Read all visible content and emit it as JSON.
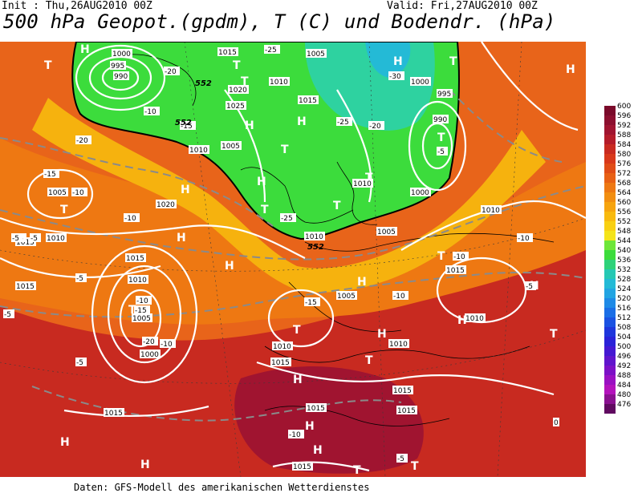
{
  "header": {
    "init": "Init : Thu,26AUG2010 00Z",
    "valid": "Valid: Fri,27AUG2010 00Z",
    "title": "500 hPa Geopot.(gpdm), T (C) und Bodendr. (hPa)"
  },
  "footer": "Daten: GFS-Modell des amerikanischen Wetterdienstes",
  "legend": {
    "levels": [
      "600",
      "596",
      "592",
      "588",
      "584",
      "580",
      "576",
      "572",
      "568",
      "564",
      "560",
      "556",
      "552",
      "548",
      "544",
      "540",
      "536",
      "532",
      "528",
      "524",
      "520",
      "516",
      "512",
      "508",
      "504",
      "500",
      "496",
      "492",
      "488",
      "484",
      "480",
      "476"
    ],
    "colors": [
      "#7a0a2a",
      "#8c0f2f",
      "#a01430",
      "#b41c2a",
      "#c82a20",
      "#d8381a",
      "#e04c16",
      "#e86014",
      "#ee7812",
      "#f28e10",
      "#f6a40e",
      "#f8ba0e",
      "#f8d012",
      "#f4e41a",
      "#6ee63a",
      "#3cdc3c",
      "#2ed27a",
      "#26c8b4",
      "#24bad6",
      "#22a4e2",
      "#1e8ae6",
      "#1a6ee6",
      "#1a52e2",
      "#1e36dc",
      "#2a22d8",
      "#4418d2",
      "#6014cc",
      "#7c10c6",
      "#9a10c2",
      "#b412bc",
      "#8a1090",
      "#600a60"
    ]
  },
  "map": {
    "high_markers": [
      {
        "label": "H"
      },
      {
        "label": "H"
      },
      {
        "label": "H"
      },
      {
        "label": "H"
      },
      {
        "label": "H"
      },
      {
        "label": "H"
      },
      {
        "label": "H"
      },
      {
        "label": "H"
      },
      {
        "label": "H"
      },
      {
        "label": "H"
      },
      {
        "label": "H"
      },
      {
        "label": "H"
      },
      {
        "label": "H"
      },
      {
        "label": "H"
      },
      {
        "label": "H"
      },
      {
        "label": "H"
      },
      {
        "label": "H"
      },
      {
        "label": "H"
      }
    ],
    "low_markers": [
      {
        "label": "T"
      },
      {
        "label": "T"
      },
      {
        "label": "T"
      },
      {
        "label": "T"
      },
      {
        "label": "T"
      },
      {
        "label": "T"
      },
      {
        "label": "T"
      },
      {
        "label": "T"
      },
      {
        "label": "T"
      },
      {
        "label": "T"
      },
      {
        "label": "T"
      },
      {
        "label": "T"
      },
      {
        "label": "T"
      },
      {
        "label": "T"
      },
      {
        "label": "T"
      },
      {
        "label": "T"
      },
      {
        "label": "T"
      },
      {
        "label": "T"
      }
    ],
    "isobar_labels": [
      "1000",
      "995",
      "990",
      "1015",
      "1005",
      "1010",
      "1020",
      "1025",
      "1015",
      "1010",
      "1005",
      "1000",
      "995",
      "990",
      "1010",
      "1000",
      "1005",
      "1010",
      "1015",
      "1005",
      "1010",
      "1020",
      "1015",
      "1010",
      "1005",
      "1000",
      "1010",
      "1015",
      "1010",
      "1015",
      "1015",
      "1015",
      "1015",
      "1015",
      "1010",
      "1010",
      "1015",
      "1005",
      "1015"
    ],
    "temp_labels": [
      "-25",
      "-20",
      "-15",
      "-10",
      "-5",
      "-20",
      "-15",
      "-10",
      "-5",
      "-25",
      "-30",
      "-25",
      "-20",
      "-15",
      "-10",
      "-5",
      "-10",
      "-15",
      "-20",
      "-10",
      "-5",
      "-10",
      "-10",
      "-5",
      "-10",
      "-5",
      "-5",
      "0",
      "-5",
      "-10",
      "-5"
    ],
    "height_labels": [
      "552",
      "552",
      "552"
    ]
  }
}
